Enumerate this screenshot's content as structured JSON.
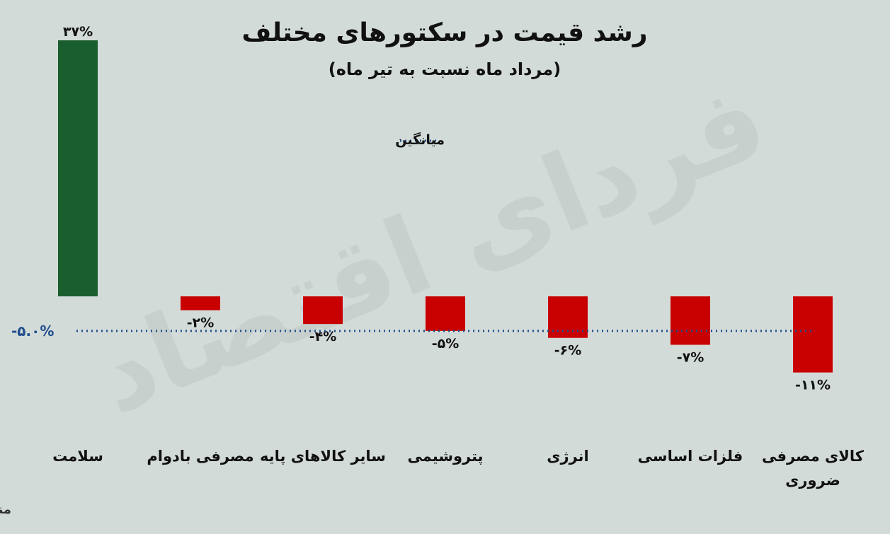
{
  "title": "رشد قیمت در سکتورهای مختلف",
  "subtitle": "(مرداد ماه نسبت به تیر ماه)",
  "legend": {
    "average_label": "میانگین"
  },
  "source": "منبع: گزارش هفتگی گروه مالی کیان",
  "watermark": "فردای اقتصاد",
  "colors": {
    "positive": "#1b5e2e",
    "negative": "#c90000",
    "average": "#1f4e8c",
    "background": "#d3dbd9"
  },
  "chart_data": {
    "type": "bar",
    "categories": [
      "سلامت",
      "مصرفی بادوام",
      "سایر کالاهای پایه",
      "پتروشیمی",
      "انرژی",
      "فلزات اساسی",
      "کالای مصرفی ضروری"
    ],
    "category_lines": [
      [
        "سلامت"
      ],
      [
        "مصرفی بادوام"
      ],
      [
        "سایر کالاهای پایه"
      ],
      [
        "پتروشیمی"
      ],
      [
        "انرژی"
      ],
      [
        "فلزات اساسی"
      ],
      [
        "کالای مصرفی",
        "ضروری"
      ]
    ],
    "values": [
      37,
      -2,
      -4,
      -5,
      -6,
      -7,
      -11
    ],
    "value_labels": [
      "۳۷%",
      "-۲%",
      "-۴%",
      "-۵%",
      "-۶%",
      "-۷%",
      "-۱۱%"
    ],
    "average": -5.0,
    "average_label": "-۵.۰%",
    "ylim": [
      -20,
      37
    ]
  }
}
